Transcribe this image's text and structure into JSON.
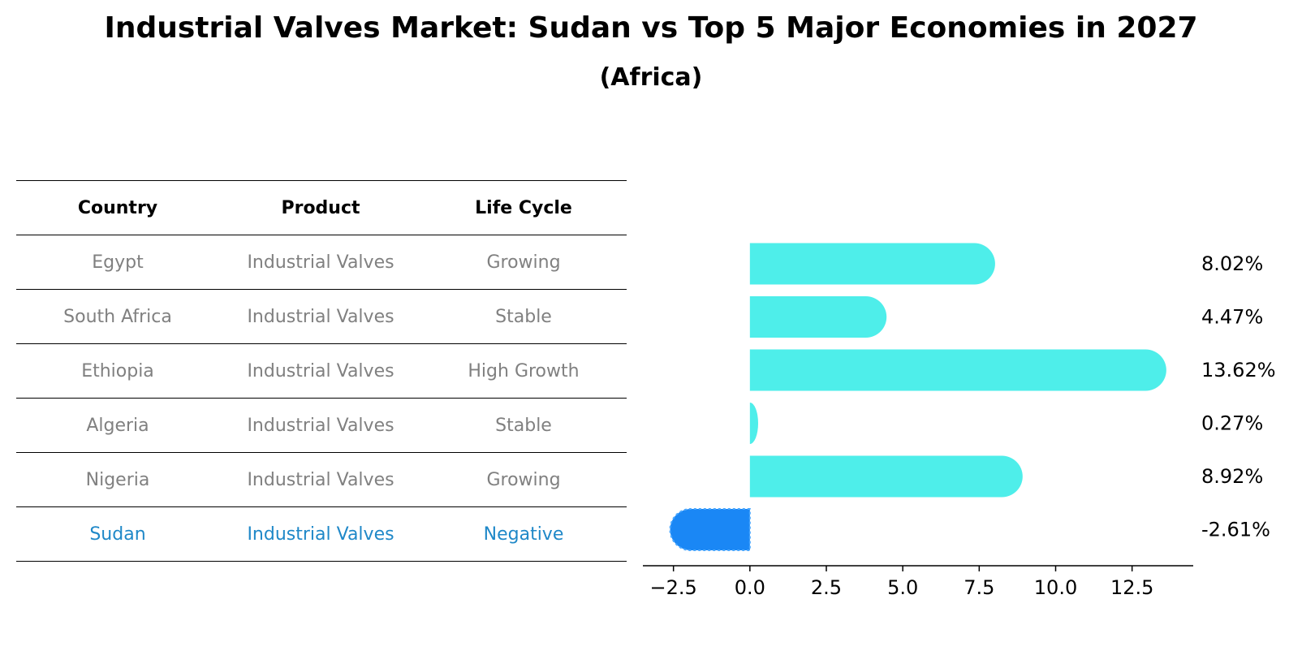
{
  "title": "Industrial Valves Market: Sudan vs Top 5 Major Economies in 2027",
  "subtitle": "(Africa)",
  "table": {
    "headers": [
      "Country",
      "Product",
      "Life Cycle"
    ],
    "rows": [
      {
        "country": "Egypt",
        "product": "Industrial Valves",
        "life_cycle": "Growing"
      },
      {
        "country": "South Africa",
        "product": "Industrial Valves",
        "life_cycle": "Stable"
      },
      {
        "country": "Ethiopia",
        "product": "Industrial Valves",
        "life_cycle": "High Growth"
      },
      {
        "country": "Algeria",
        "product": "Industrial Valves",
        "life_cycle": "Stable"
      },
      {
        "country": "Nigeria",
        "product": "Industrial Valves",
        "life_cycle": "Growing"
      },
      {
        "country": "Sudan",
        "product": "Industrial Valves",
        "life_cycle": "Negative"
      }
    ],
    "highlight_color": "#1f88c8",
    "text_color": "#808080"
  },
  "chart_data": {
    "type": "bar",
    "orientation": "horizontal",
    "categories": [
      "Egypt",
      "South Africa",
      "Ethiopia",
      "Algeria",
      "Nigeria",
      "Sudan"
    ],
    "values": [
      8.02,
      4.47,
      13.62,
      0.27,
      8.92,
      -2.61
    ],
    "labels": [
      "8.02%",
      "4.47%",
      "13.62%",
      "0.27%",
      "8.92%",
      "-2.61%"
    ],
    "xlim": [
      -3.5,
      14.5
    ],
    "xticks": [
      -2.5,
      0.0,
      2.5,
      5.0,
      7.5,
      10.0,
      12.5
    ],
    "xtick_labels": [
      "−2.5",
      "0.0",
      "2.5",
      "5.0",
      "7.5",
      "10.0",
      "12.5"
    ],
    "colors": {
      "default": "#4eeeea",
      "highlight": "#1a87f5"
    },
    "highlight_category": "Sudan"
  }
}
